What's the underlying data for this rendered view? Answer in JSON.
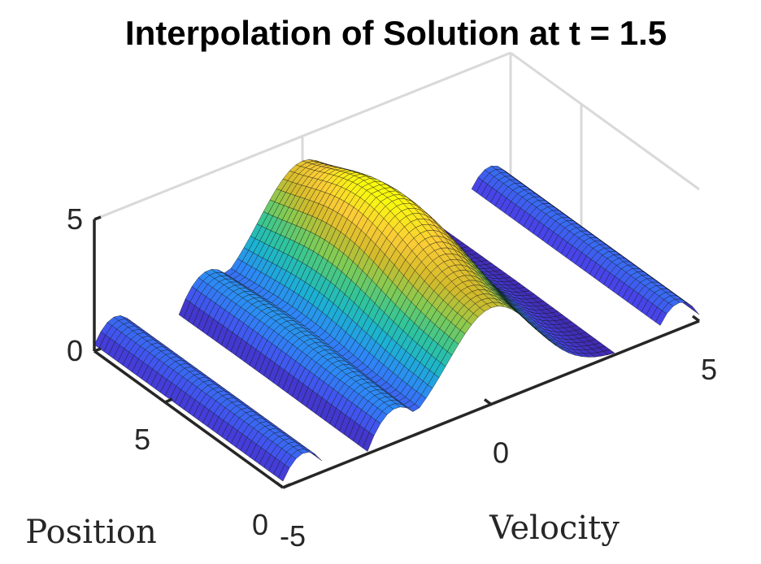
{
  "chart_data": {
    "type": "surface",
    "title": "Interpolation of Solution at t = 1.5",
    "xlabel": "Velocity",
    "ylabel": "Position",
    "zlabel": "",
    "xlim": [
      -5,
      5
    ],
    "ylim": [
      0,
      8
    ],
    "zlim": [
      0,
      5
    ],
    "x_ticks": [
      "-5",
      "0",
      "5"
    ],
    "y_ticks": [
      "0",
      "5"
    ],
    "z_ticks": [
      "0",
      "5"
    ],
    "colormap": "parula",
    "colormap_colors": [
      "#3e26a8",
      "#4746eb",
      "#2e87f7",
      "#1cb2d2",
      "#30c59a",
      "#83cb53",
      "#d3ba2b",
      "#fbcc36",
      "#f9fb0e"
    ],
    "grid": true,
    "surface": {
      "description_values": {
        "central_peak": {
          "velocity": 0,
          "position": 5,
          "value": 5
        },
        "secondary_max": {
          "velocity": 1.2,
          "position": 3.5,
          "value": 4.6
        },
        "side_bands_value": 1.0,
        "side_bands_velocity_ranges": [
          [
            -5,
            -4
          ],
          [
            -2.9,
            -1.9
          ],
          [
            4,
            5
          ]
        ]
      }
    }
  }
}
